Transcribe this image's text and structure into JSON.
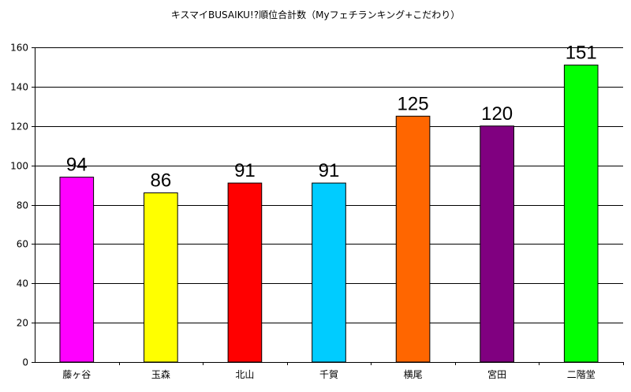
{
  "chart_data": {
    "type": "bar",
    "title": "キスマイBUSAIKU!?順位合計数（Myフェチランキング+こだわり）",
    "categories": [
      "藤ヶ谷",
      "玉森",
      "北山",
      "千賀",
      "横尾",
      "宮田",
      "二階堂"
    ],
    "values": [
      94,
      86,
      91,
      91,
      125,
      120,
      151
    ],
    "data_labels": [
      "94",
      "86",
      "91",
      "91",
      "125",
      "120",
      "151"
    ],
    "bar_colors": [
      "#FF00FF",
      "#FFFF00",
      "#FF0000",
      "#00CCFF",
      "#FF6600",
      "#800080",
      "#00FF00"
    ],
    "ylim": [
      0,
      160
    ],
    "yticks": [
      0,
      20,
      40,
      60,
      80,
      100,
      120,
      140,
      160
    ],
    "ytick_labels": [
      "0",
      "20",
      "40",
      "60",
      "80",
      "100",
      "120",
      "140",
      "160"
    ],
    "xlabel": "",
    "ylabel": "",
    "grid": true,
    "legend": "none"
  }
}
